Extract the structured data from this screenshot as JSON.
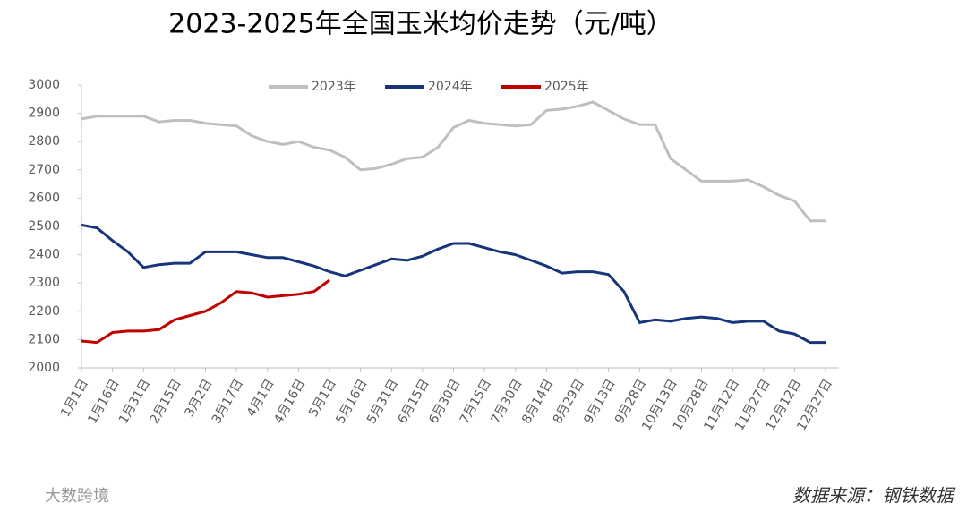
{
  "chart_data": {
    "type": "line",
    "title": "2023-2025年全国玉米均价走势（元/吨）",
    "source": "数据来源：钢铁数据",
    "watermark": "大数跨境",
    "categories": [
      "1月1日",
      null,
      "1月16日",
      null,
      "1月31日",
      null,
      "2月15日",
      null,
      "3月2日",
      null,
      "3月17日",
      null,
      "4月1日",
      null,
      "4月16日",
      null,
      "5月1日",
      null,
      "5月16日",
      null,
      "5月31日",
      null,
      "6月15日",
      null,
      "6月30日",
      null,
      "7月15日",
      null,
      "7月30日",
      null,
      "8月14日",
      null,
      "8月29日",
      null,
      "9月13日",
      null,
      "9月28日",
      null,
      "10月13日",
      null,
      "10月28日",
      null,
      "11月12日",
      null,
      "11月27日",
      null,
      "12月12日",
      null,
      "12月27日"
    ],
    "series": [
      {
        "name": "2023年",
        "color": "#bfbfbf",
        "values": [
          2880,
          2890,
          2890,
          2890,
          2890,
          2870,
          2875,
          2875,
          2865,
          2860,
          2855,
          2820,
          2800,
          2790,
          2800,
          2780,
          2770,
          2745,
          2700,
          2705,
          2720,
          2740,
          2745,
          2780,
          2850,
          2875,
          2865,
          2860,
          2855,
          2860,
          2910,
          2915,
          2925,
          2940,
          2910,
          2880,
          2860,
          2860,
          2740,
          2700,
          2660,
          2660,
          2660,
          2665,
          2640,
          2610,
          2590,
          2520,
          2520
        ]
      },
      {
        "name": "2024年",
        "color": "#17357a",
        "values": [
          2505,
          2495,
          2450,
          2410,
          2355,
          2365,
          2370,
          2370,
          2410,
          2410,
          2410,
          2400,
          2390,
          2390,
          2375,
          2360,
          2340,
          2325,
          2345,
          2365,
          2385,
          2380,
          2395,
          2420,
          2440,
          2440,
          2425,
          2410,
          2400,
          2380,
          2360,
          2335,
          2340,
          2340,
          2330,
          2270,
          2160,
          2170,
          2165,
          2175,
          2180,
          2175,
          2160,
          2165,
          2165,
          2130,
          2120,
          2090,
          2090
        ]
      },
      {
        "name": "2025年",
        "color": "#c00000",
        "values": [
          2095,
          2090,
          2125,
          2130,
          2130,
          2135,
          2170,
          2185,
          2200,
          2230,
          2270,
          2265,
          2250,
          2255,
          2260,
          2270,
          2310,
          null,
          null,
          null,
          null,
          null,
          null,
          null,
          null,
          null,
          null,
          null,
          null,
          null,
          null,
          null,
          null,
          null,
          null,
          null,
          null,
          null,
          null,
          null,
          null,
          null,
          null,
          null,
          null,
          null,
          null,
          null,
          null
        ]
      }
    ],
    "ylim": [
      2000,
      3000
    ],
    "yticks": [
      2000,
      2100,
      2200,
      2300,
      2400,
      2500,
      2600,
      2700,
      2800,
      2900,
      3000
    ],
    "legend": "top"
  }
}
